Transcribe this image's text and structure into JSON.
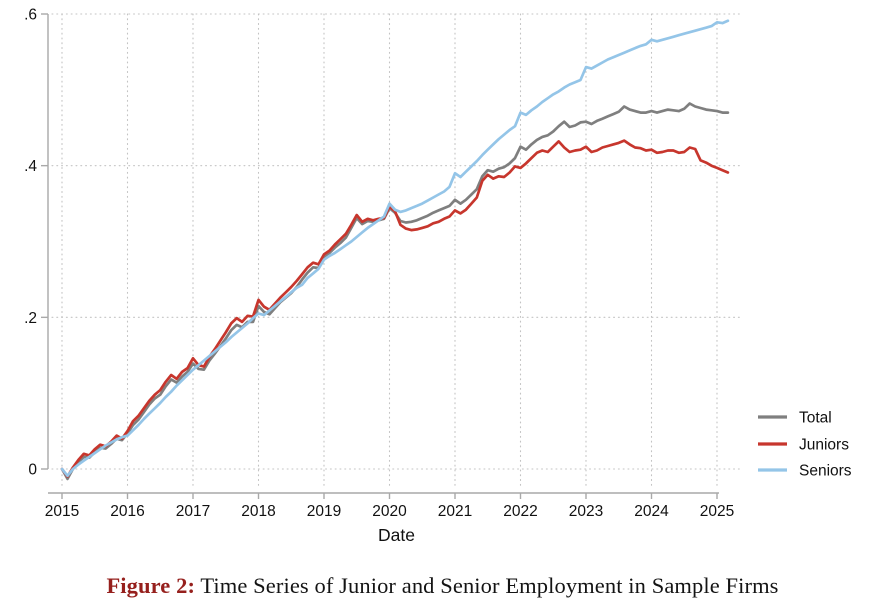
{
  "figure": {
    "caption_label": "Figure 2:",
    "caption_text": " Time Series of Junior and Senior Employment in Sample Firms"
  },
  "chart_data": {
    "type": "line",
    "title": "",
    "xlabel": "Date",
    "ylabel": "",
    "grid": "dotted",
    "x_axis": {
      "ticks": [
        2015,
        2016,
        2017,
        2018,
        2019,
        2020,
        2021,
        2022,
        2023,
        2024,
        2025
      ]
    },
    "y_axis": {
      "ticks": [
        0,
        0.2,
        0.4,
        0.6
      ],
      "tick_labels": [
        "0",
        ".2",
        ".4",
        ".6"
      ],
      "range": [
        -0.02,
        0.6
      ]
    },
    "x_start": 2015.0,
    "x_step": 0.0833333,
    "x_range": [
      2015.0,
      2025.17
    ],
    "legend": {
      "position": "right",
      "entries": [
        "Total",
        "Juniors",
        "Seniors"
      ]
    },
    "colors": {
      "grid": "#c3c3c3",
      "axis": "#a9a9a9",
      "total": "#7f7f7f",
      "juniors": "#c7362d",
      "seniors": "#94c5e8",
      "caption_accent": "#96201d"
    },
    "series": [
      {
        "name": "Total",
        "color": "#7f7f7f",
        "values": [
          0.0,
          -0.013,
          0.0,
          0.009,
          0.016,
          0.015,
          0.022,
          0.028,
          0.027,
          0.033,
          0.04,
          0.038,
          0.047,
          0.058,
          0.065,
          0.075,
          0.085,
          0.093,
          0.098,
          0.109,
          0.118,
          0.114,
          0.122,
          0.128,
          0.139,
          0.132,
          0.131,
          0.143,
          0.152,
          0.162,
          0.172,
          0.183,
          0.19,
          0.187,
          0.194,
          0.194,
          0.215,
          0.207,
          0.204,
          0.212,
          0.22,
          0.226,
          0.232,
          0.24,
          0.25,
          0.259,
          0.266,
          0.265,
          0.28,
          0.285,
          0.292,
          0.298,
          0.305,
          0.318,
          0.331,
          0.323,
          0.327,
          0.326,
          0.328,
          0.33,
          0.344,
          0.338,
          0.327,
          0.325,
          0.326,
          0.328,
          0.331,
          0.334,
          0.338,
          0.341,
          0.344,
          0.347,
          0.355,
          0.35,
          0.355,
          0.362,
          0.369,
          0.386,
          0.394,
          0.392,
          0.396,
          0.398,
          0.403,
          0.41,
          0.425,
          0.421,
          0.428,
          0.434,
          0.438,
          0.44,
          0.445,
          0.452,
          0.458,
          0.451,
          0.453,
          0.457,
          0.458,
          0.455,
          0.459,
          0.462,
          0.465,
          0.468,
          0.471,
          0.478,
          0.474,
          0.472,
          0.47,
          0.47,
          0.472,
          0.47,
          0.472,
          0.474,
          0.473,
          0.472,
          0.475,
          0.482,
          0.478,
          0.476,
          0.474,
          0.473,
          0.472,
          0.47,
          0.47
        ]
      },
      {
        "name": "Juniors",
        "color": "#c7362d",
        "values": [
          0.0,
          -0.01,
          0.002,
          0.012,
          0.02,
          0.018,
          0.026,
          0.032,
          0.03,
          0.036,
          0.044,
          0.04,
          0.05,
          0.063,
          0.07,
          0.08,
          0.09,
          0.098,
          0.104,
          0.115,
          0.124,
          0.119,
          0.128,
          0.133,
          0.146,
          0.137,
          0.135,
          0.148,
          0.158,
          0.169,
          0.18,
          0.192,
          0.199,
          0.194,
          0.202,
          0.201,
          0.223,
          0.214,
          0.21,
          0.218,
          0.226,
          0.233,
          0.24,
          0.248,
          0.257,
          0.266,
          0.272,
          0.27,
          0.283,
          0.288,
          0.296,
          0.303,
          0.31,
          0.322,
          0.335,
          0.326,
          0.33,
          0.328,
          0.33,
          0.331,
          0.346,
          0.34,
          0.322,
          0.317,
          0.315,
          0.316,
          0.318,
          0.32,
          0.324,
          0.326,
          0.33,
          0.333,
          0.341,
          0.337,
          0.342,
          0.35,
          0.358,
          0.38,
          0.388,
          0.383,
          0.386,
          0.385,
          0.391,
          0.399,
          0.397,
          0.403,
          0.41,
          0.417,
          0.42,
          0.418,
          0.425,
          0.432,
          0.424,
          0.418,
          0.42,
          0.421,
          0.425,
          0.418,
          0.42,
          0.424,
          0.426,
          0.428,
          0.43,
          0.433,
          0.428,
          0.424,
          0.423,
          0.42,
          0.421,
          0.417,
          0.418,
          0.42,
          0.42,
          0.417,
          0.418,
          0.424,
          0.422,
          0.407,
          0.404,
          0.4,
          0.397,
          0.394,
          0.391
        ]
      },
      {
        "name": "Seniors",
        "color": "#94c5e8",
        "values": [
          0.0,
          -0.009,
          0.0,
          0.006,
          0.011,
          0.016,
          0.021,
          0.026,
          0.031,
          0.035,
          0.039,
          0.042,
          0.044,
          0.051,
          0.058,
          0.066,
          0.073,
          0.08,
          0.087,
          0.095,
          0.102,
          0.11,
          0.117,
          0.124,
          0.131,
          0.137,
          0.143,
          0.149,
          0.155,
          0.161,
          0.167,
          0.174,
          0.18,
          0.186,
          0.192,
          0.199,
          0.205,
          0.203,
          0.209,
          0.215,
          0.221,
          0.227,
          0.233,
          0.239,
          0.243,
          0.252,
          0.258,
          0.264,
          0.276,
          0.281,
          0.285,
          0.29,
          0.295,
          0.3,
          0.306,
          0.312,
          0.318,
          0.323,
          0.328,
          0.333,
          0.35,
          0.342,
          0.339,
          0.341,
          0.344,
          0.347,
          0.35,
          0.354,
          0.358,
          0.362,
          0.366,
          0.372,
          0.39,
          0.385,
          0.392,
          0.399,
          0.406,
          0.414,
          0.421,
          0.428,
          0.435,
          0.441,
          0.447,
          0.452,
          0.47,
          0.467,
          0.473,
          0.478,
          0.484,
          0.489,
          0.494,
          0.498,
          0.503,
          0.507,
          0.51,
          0.513,
          0.53,
          0.528,
          0.532,
          0.536,
          0.54,
          0.543,
          0.546,
          0.549,
          0.552,
          0.555,
          0.558,
          0.56,
          0.566,
          0.564,
          0.566,
          0.568,
          0.57,
          0.572,
          0.574,
          0.576,
          0.578,
          0.58,
          0.582,
          0.584,
          0.589,
          0.588,
          0.591
        ]
      }
    ]
  }
}
